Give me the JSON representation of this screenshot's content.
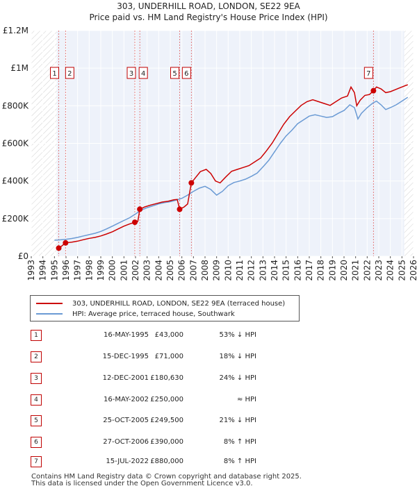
{
  "chart_data": {
    "type": "line",
    "title": "303, UNDERHILL ROAD, LONDON, SE22 9EA",
    "subtitle": "Price paid vs. HM Land Registry's House Price Index (HPI)",
    "xlabel": "",
    "ylabel": "",
    "xlim": [
      1993,
      2026
    ],
    "ylim": [
      0,
      1200000
    ],
    "y_ticks": [
      {
        "value": 0,
        "label": "£0"
      },
      {
        "value": 200000,
        "label": "£200K"
      },
      {
        "value": 400000,
        "label": "£400K"
      },
      {
        "value": 600000,
        "label": "£600K"
      },
      {
        "value": 800000,
        "label": "£800K"
      },
      {
        "value": 1000000,
        "label": "£1M"
      },
      {
        "value": 1200000,
        "label": "£1.2M"
      }
    ],
    "x_ticks": [
      "1993",
      "1994",
      "1995",
      "1996",
      "1997",
      "1998",
      "1999",
      "2000",
      "2001",
      "2002",
      "2003",
      "2004",
      "2005",
      "2006",
      "2007",
      "2008",
      "2009",
      "2010",
      "2011",
      "2012",
      "2013",
      "2014",
      "2015",
      "2016",
      "2017",
      "2018",
      "2019",
      "2020",
      "2021",
      "2022",
      "2023",
      "2024",
      "2025",
      "2026"
    ],
    "hatched_ranges": [
      [
        1993,
        1995.2
      ],
      [
        2025.2,
        2026
      ]
    ],
    "series": [
      {
        "name": "303, UNDERHILL ROAD, LONDON, SE22 9EA (terraced house)",
        "color": "#cc0000",
        "points": [
          [
            1995.37,
            43000
          ],
          [
            1995.5,
            48000
          ],
          [
            1995.96,
            71000
          ],
          [
            1996.5,
            75000
          ],
          [
            1997,
            80000
          ],
          [
            1997.5,
            88000
          ],
          [
            1998,
            95000
          ],
          [
            1998.5,
            100000
          ],
          [
            1999,
            108000
          ],
          [
            1999.5,
            118000
          ],
          [
            2000,
            130000
          ],
          [
            2000.5,
            145000
          ],
          [
            2001,
            160000
          ],
          [
            2001.5,
            172000
          ],
          [
            2001.94,
            180630
          ],
          [
            2002.2,
            185000
          ],
          [
            2002.37,
            250000
          ],
          [
            2002.8,
            262000
          ],
          [
            2003.3,
            272000
          ],
          [
            2003.8,
            280000
          ],
          [
            2004.3,
            288000
          ],
          [
            2004.8,
            292000
          ],
          [
            2005.3,
            300000
          ],
          [
            2005.6,
            302000
          ],
          [
            2005.81,
            249500
          ],
          [
            2006.2,
            262000
          ],
          [
            2006.5,
            278000
          ],
          [
            2006.82,
            390000
          ],
          [
            2007.2,
            420000
          ],
          [
            2007.6,
            450000
          ],
          [
            2008.1,
            462000
          ],
          [
            2008.5,
            440000
          ],
          [
            2008.9,
            400000
          ],
          [
            2009.3,
            390000
          ],
          [
            2009.8,
            422000
          ],
          [
            2010.3,
            452000
          ],
          [
            2010.8,
            462000
          ],
          [
            2011.3,
            472000
          ],
          [
            2011.8,
            482000
          ],
          [
            2012.3,
            502000
          ],
          [
            2012.8,
            522000
          ],
          [
            2013.3,
            560000
          ],
          [
            2013.8,
            602000
          ],
          [
            2014.3,
            652000
          ],
          [
            2014.8,
            702000
          ],
          [
            2015.3,
            742000
          ],
          [
            2015.8,
            772000
          ],
          [
            2016.3,
            802000
          ],
          [
            2016.8,
            822000
          ],
          [
            2017.3,
            832000
          ],
          [
            2017.8,
            822000
          ],
          [
            2018.3,
            812000
          ],
          [
            2018.8,
            802000
          ],
          [
            2019.3,
            822000
          ],
          [
            2019.8,
            842000
          ],
          [
            2020.3,
            852000
          ],
          [
            2020.6,
            900000
          ],
          [
            2020.9,
            870000
          ],
          [
            2021.1,
            800000
          ],
          [
            2021.4,
            830000
          ],
          [
            2021.8,
            855000
          ],
          [
            2022.2,
            860000
          ],
          [
            2022.54,
            880000
          ],
          [
            2022.8,
            900000
          ],
          [
            2023.2,
            890000
          ],
          [
            2023.6,
            870000
          ],
          [
            2024.0,
            875000
          ],
          [
            2024.4,
            885000
          ],
          [
            2024.8,
            895000
          ],
          [
            2025.2,
            905000
          ],
          [
            2025.5,
            912000
          ]
        ]
      },
      {
        "name": "HPI: Average price, terraced house, Southwark",
        "color": "#6a9ad4",
        "points": [
          [
            1995.0,
            85000
          ],
          [
            1995.5,
            87000
          ],
          [
            1996.0,
            90000
          ],
          [
            1996.5,
            94000
          ],
          [
            1997,
            100000
          ],
          [
            1997.5,
            108000
          ],
          [
            1998,
            115000
          ],
          [
            1998.5,
            122000
          ],
          [
            1999,
            132000
          ],
          [
            1999.5,
            145000
          ],
          [
            2000,
            160000
          ],
          [
            2000.5,
            175000
          ],
          [
            2001,
            190000
          ],
          [
            2001.5,
            205000
          ],
          [
            2002,
            225000
          ],
          [
            2002.5,
            245000
          ],
          [
            2003,
            258000
          ],
          [
            2003.5,
            268000
          ],
          [
            2004,
            278000
          ],
          [
            2004.5,
            285000
          ],
          [
            2005,
            290000
          ],
          [
            2005.5,
            298000
          ],
          [
            2006,
            308000
          ],
          [
            2006.5,
            325000
          ],
          [
            2007,
            345000
          ],
          [
            2007.5,
            362000
          ],
          [
            2008,
            372000
          ],
          [
            2008.5,
            355000
          ],
          [
            2009,
            325000
          ],
          [
            2009.5,
            345000
          ],
          [
            2010,
            375000
          ],
          [
            2010.5,
            392000
          ],
          [
            2011,
            400000
          ],
          [
            2011.5,
            410000
          ],
          [
            2012,
            425000
          ],
          [
            2012.5,
            442000
          ],
          [
            2013,
            475000
          ],
          [
            2013.5,
            510000
          ],
          [
            2014,
            555000
          ],
          [
            2014.5,
            600000
          ],
          [
            2015,
            640000
          ],
          [
            2015.5,
            670000
          ],
          [
            2016,
            705000
          ],
          [
            2016.5,
            725000
          ],
          [
            2017,
            745000
          ],
          [
            2017.5,
            752000
          ],
          [
            2018,
            745000
          ],
          [
            2018.5,
            738000
          ],
          [
            2019,
            742000
          ],
          [
            2019.5,
            760000
          ],
          [
            2020,
            775000
          ],
          [
            2020.5,
            805000
          ],
          [
            2020.9,
            790000
          ],
          [
            2021.2,
            730000
          ],
          [
            2021.5,
            760000
          ],
          [
            2022,
            790000
          ],
          [
            2022.5,
            815000
          ],
          [
            2022.8,
            825000
          ],
          [
            2023.2,
            805000
          ],
          [
            2023.6,
            780000
          ],
          [
            2024.0,
            790000
          ],
          [
            2024.5,
            805000
          ],
          [
            2025.0,
            825000
          ],
          [
            2025.5,
            845000
          ]
        ]
      }
    ],
    "transactions": [
      {
        "id": "1",
        "date": "16-MAY-1995",
        "price": "£43,000",
        "relation": "53% ↓ HPI",
        "x": 1995.37,
        "y": 43000
      },
      {
        "id": "2",
        "date": "15-DEC-1995",
        "price": "£71,000",
        "relation": "18% ↓ HPI",
        "x": 1995.96,
        "y": 71000
      },
      {
        "id": "3",
        "date": "12-DEC-2001",
        "price": "£180,630",
        "relation": "24% ↓ HPI",
        "x": 2001.94,
        "y": 180630
      },
      {
        "id": "4",
        "date": "16-MAY-2002",
        "price": "£250,000",
        "relation": "≈ HPI",
        "x": 2002.37,
        "y": 250000
      },
      {
        "id": "5",
        "date": "25-OCT-2005",
        "price": "£249,500",
        "relation": "21% ↓ HPI",
        "x": 2005.81,
        "y": 249500
      },
      {
        "id": "6",
        "date": "27-OCT-2006",
        "price": "£390,000",
        "relation": "8% ↑ HPI",
        "x": 2006.82,
        "y": 390000
      },
      {
        "id": "7",
        "date": "15-JUL-2022",
        "price": "£880,000",
        "relation": "8% ↑ HPI",
        "x": 2022.54,
        "y": 880000
      }
    ]
  },
  "footer": {
    "line1": "Contains HM Land Registry data © Crown copyright and database right 2025.",
    "line2": "This data is licensed under the Open Government Licence v3.0."
  }
}
